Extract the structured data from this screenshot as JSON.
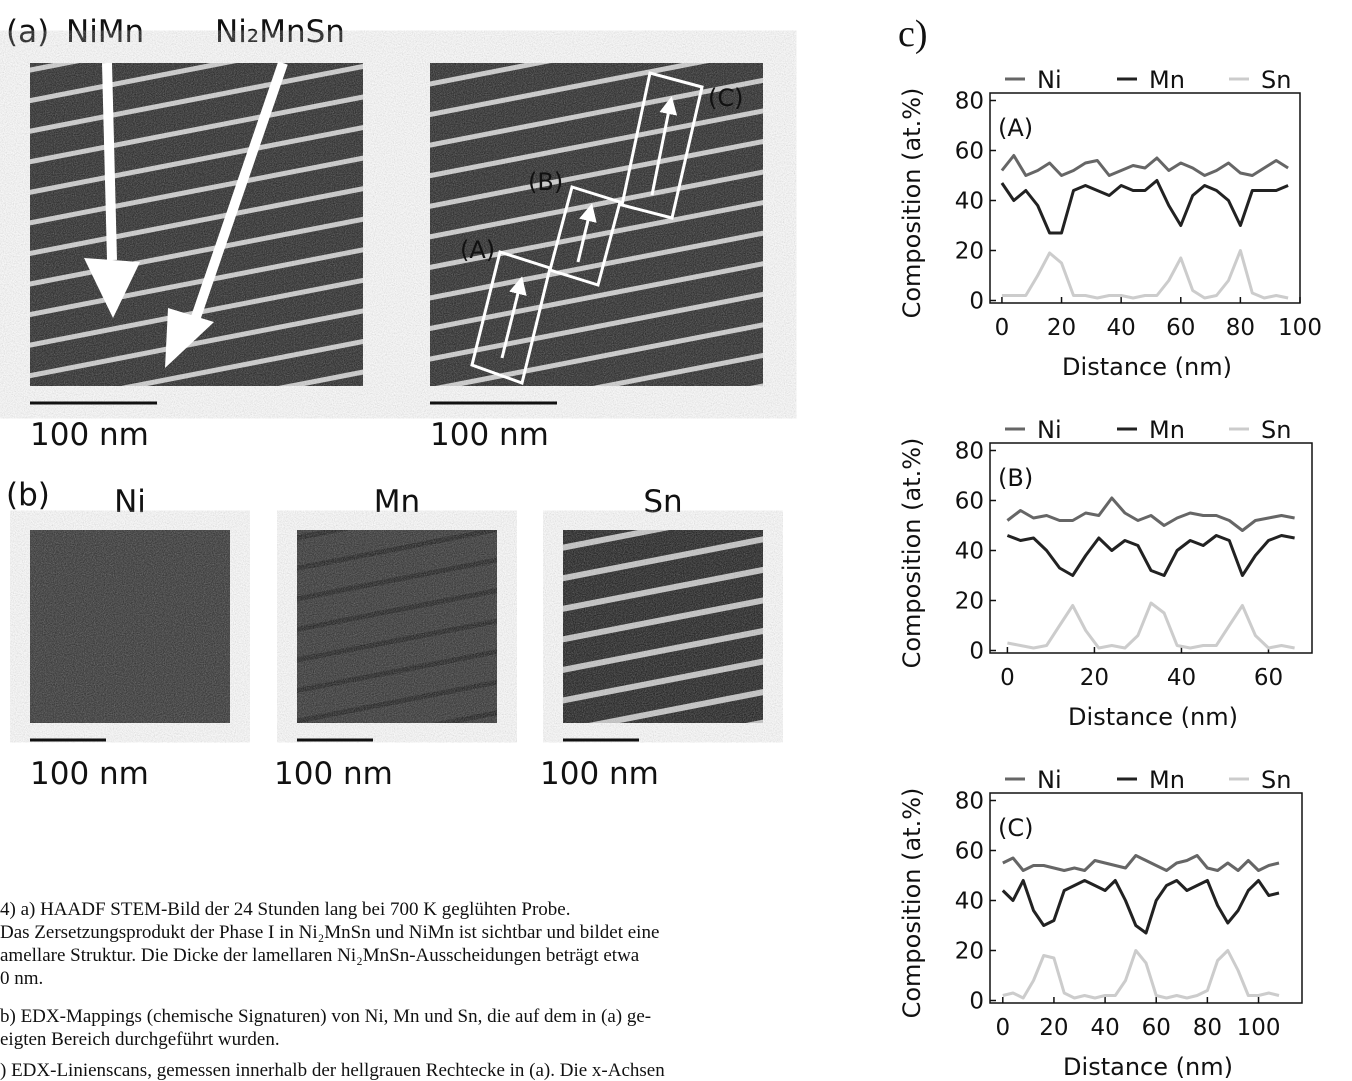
{
  "figure": {
    "panel_a_label": "(a)",
    "arrow_labels": [
      "NiMn",
      "Ni₂MnSn"
    ],
    "region_labels": [
      "(A)",
      "(B)",
      "(C)"
    ],
    "scale_bars": [
      "100 nm",
      "100 nm",
      "100 nm",
      "100 nm",
      "100 nm"
    ],
    "panel_b_label": "(b)",
    "map_labels": [
      "Ni",
      "Mn",
      "Sn"
    ],
    "panel_c_label": "c)",
    "caption": [
      "4) a) HAADF STEM-Bild der 24 Stunden lang bei 700 K geglühten Probe.",
      "Das Zersetzungsprodukt der Phase I in Ni₂MnSn und NiMn ist sichtbar und bildet eine",
      "amellare Struktur. Die Dicke der lamellaren Ni₂MnSn-Ausscheidungen beträgt etwa",
      "0 nm.",
      "b) EDX-Mappings (chemische Signaturen) von Ni, Mn und Sn, die auf dem in (a) ge-",
      "eigten Bereich durchgeführt wurden.",
      ") EDX-Linienscans, gemessen innerhalb der hellgrauen Rechtecke in (a). Die x-Achsen"
    ]
  },
  "chart_data": [
    {
      "type": "line",
      "annotation": "(A)",
      "x_label": "Distance (nm)",
      "y_label": "Composition (at.%)",
      "x": [
        0,
        4,
        8,
        12,
        16,
        20,
        24,
        28,
        32,
        36,
        40,
        44,
        48,
        52,
        56,
        60,
        64,
        68,
        72,
        76,
        80,
        84,
        88,
        92,
        96
      ],
      "series": [
        {
          "name": "Ni",
          "color": "#666666",
          "values": [
            52,
            58,
            50,
            52,
            55,
            50,
            52,
            55,
            56,
            50,
            52,
            54,
            53,
            57,
            52,
            55,
            53,
            50,
            52,
            55,
            51,
            50,
            53,
            56,
            53
          ]
        },
        {
          "name": "Mn",
          "color": "#222222",
          "values": [
            47,
            40,
            44,
            38,
            27,
            27,
            44,
            46,
            44,
            42,
            46,
            44,
            44,
            48,
            38,
            30,
            42,
            46,
            44,
            40,
            30,
            44,
            44,
            44,
            46
          ]
        },
        {
          "name": "Sn",
          "color": "#cccccc",
          "values": [
            2,
            2,
            2,
            10,
            19,
            15,
            2,
            2,
            1,
            2,
            2,
            1,
            2,
            2,
            8,
            17,
            4,
            1,
            2,
            8,
            20,
            3,
            1,
            2,
            1
          ]
        }
      ],
      "xlim": [
        -4,
        100
      ],
      "xticks": [
        0,
        20,
        40,
        60,
        80,
        100
      ],
      "ylim": [
        -1,
        83
      ],
      "yticks": [
        0,
        20,
        40,
        60,
        80
      ]
    },
    {
      "type": "line",
      "annotation": "(B)",
      "x_label": "Distance (nm)",
      "y_label": "Composition (at.%)",
      "x": [
        0,
        3,
        6,
        9,
        12,
        15,
        18,
        21,
        24,
        27,
        30,
        33,
        36,
        39,
        42,
        45,
        48,
        51,
        54,
        57,
        60,
        63,
        66
      ],
      "series": [
        {
          "name": "Ni",
          "color": "#666666",
          "values": [
            52,
            56,
            53,
            54,
            52,
            52,
            55,
            54,
            61,
            55,
            52,
            54,
            50,
            53,
            55,
            54,
            54,
            52,
            48,
            52,
            53,
            54,
            53
          ]
        },
        {
          "name": "Mn",
          "color": "#222222",
          "values": [
            46,
            44,
            45,
            40,
            33,
            30,
            38,
            45,
            40,
            44,
            42,
            32,
            30,
            40,
            44,
            42,
            46,
            44,
            30,
            38,
            44,
            46,
            45
          ]
        },
        {
          "name": "Sn",
          "color": "#cccccc",
          "values": [
            3,
            2,
            1,
            2,
            10,
            18,
            8,
            1,
            2,
            1,
            6,
            19,
            15,
            2,
            1,
            2,
            2,
            10,
            18,
            6,
            1,
            2,
            1
          ]
        }
      ],
      "xlim": [
        -4,
        70
      ],
      "xticks": [
        0,
        20,
        40,
        60
      ],
      "ylim": [
        -1,
        83
      ],
      "yticks": [
        0,
        20,
        40,
        60,
        80
      ]
    },
    {
      "type": "line",
      "annotation": "(C)",
      "x_label": "Distance (nm)",
      "y_label": "Composition (at.%)",
      "x": [
        0,
        4,
        8,
        12,
        16,
        20,
        24,
        28,
        32,
        36,
        40,
        44,
        48,
        52,
        56,
        60,
        64,
        68,
        72,
        76,
        80,
        84,
        88,
        92,
        96,
        100,
        104,
        108
      ],
      "series": [
        {
          "name": "Ni",
          "color": "#666666",
          "values": [
            55,
            57,
            52,
            54,
            54,
            53,
            52,
            53,
            52,
            56,
            55,
            54,
            53,
            58,
            56,
            54,
            52,
            55,
            56,
            58,
            53,
            52,
            55,
            52,
            56,
            52,
            54,
            55
          ]
        },
        {
          "name": "Mn",
          "color": "#222222",
          "values": [
            44,
            40,
            48,
            36,
            30,
            32,
            44,
            46,
            48,
            46,
            44,
            48,
            40,
            30,
            27,
            40,
            46,
            48,
            44,
            46,
            48,
            38,
            31,
            36,
            44,
            48,
            42,
            43
          ]
        },
        {
          "name": "Sn",
          "color": "#cccccc",
          "values": [
            2,
            3,
            1,
            8,
            18,
            17,
            3,
            1,
            2,
            1,
            2,
            2,
            8,
            20,
            15,
            2,
            1,
            2,
            1,
            2,
            4,
            16,
            20,
            12,
            2,
            2,
            3,
            2
          ]
        }
      ],
      "xlim": [
        -5,
        117
      ],
      "xticks": [
        0,
        20,
        40,
        60,
        80,
        100
      ],
      "ylim": [
        -1,
        83
      ],
      "yticks": [
        0,
        20,
        40,
        60,
        80
      ]
    }
  ]
}
